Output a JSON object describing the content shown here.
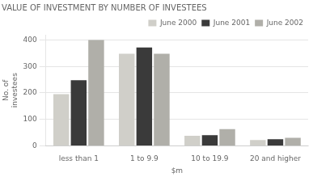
{
  "chart_data": {
    "type": "bar",
    "title": "VALUE OF INVESTMENT BY NUMBER OF INVESTEES",
    "x_label": "$m",
    "y_label": "No. of\ninvestees",
    "categories": [
      "less than 1",
      "1 to 9.9",
      "10 to 19.9",
      "20 and higher"
    ],
    "series": [
      {
        "name": "June 2000",
        "color": "#d0cfc9",
        "values": [
          195,
          348,
          38,
          22
        ]
      },
      {
        "name": "June 2001",
        "color": "#3a3a3a",
        "values": [
          248,
          372,
          40,
          25
        ]
      },
      {
        "name": "June 2002",
        "color": "#b0afa9",
        "values": [
          400,
          348,
          63,
          30
        ]
      }
    ],
    "ylim": [
      0,
      420
    ],
    "yticks": [
      0,
      100,
      200,
      300,
      400
    ],
    "grid": true,
    "legend": "upper right"
  }
}
